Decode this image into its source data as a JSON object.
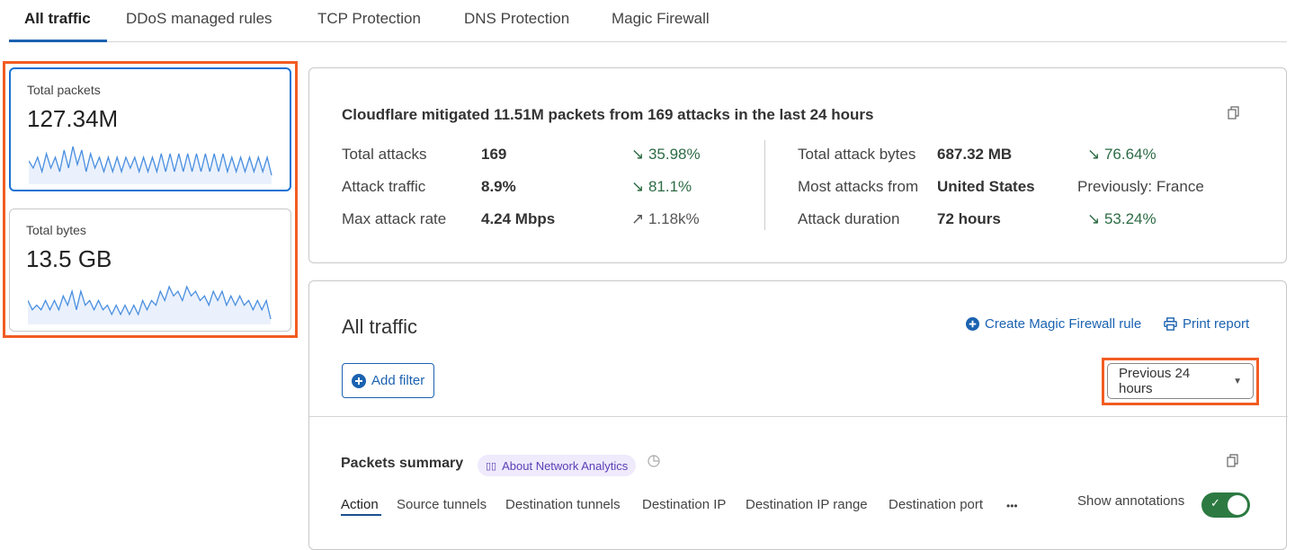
{
  "tabs": [
    {
      "label": "All traffic",
      "active": true
    },
    {
      "label": "DDoS managed rules"
    },
    {
      "label": "TCP Protection"
    },
    {
      "label": "DNS Protection"
    },
    {
      "label": "Magic Firewall"
    }
  ],
  "metrics": [
    {
      "label": "Total packets",
      "value": "127.34M",
      "selected": true,
      "sparkline": [
        5,
        3,
        6,
        2,
        7,
        3,
        6,
        2,
        8,
        3,
        9,
        4,
        8,
        2,
        7,
        3,
        6,
        2,
        6,
        2,
        6,
        2,
        6,
        3,
        6,
        2,
        6,
        2,
        6,
        2,
        7,
        2,
        7,
        2,
        7,
        2,
        7,
        2,
        7,
        2,
        7,
        2,
        7,
        2,
        7,
        2,
        6,
        2,
        6,
        2,
        6,
        2,
        6,
        2,
        6,
        1
      ]
    },
    {
      "label": "Total bytes",
      "value": "13.5 GB",
      "selected": false,
      "sparkline": [
        4,
        2,
        3,
        2,
        4,
        2,
        4,
        2,
        5,
        3,
        6,
        2,
        6,
        3,
        4,
        2,
        4,
        2,
        3,
        1,
        3,
        1,
        3,
        1,
        3,
        1,
        4,
        2,
        4,
        3,
        6,
        4,
        7,
        5,
        6,
        4,
        7,
        5,
        6,
        4,
        5,
        3,
        6,
        4,
        6,
        3,
        5,
        3,
        5,
        3,
        4,
        2,
        4,
        2,
        4,
        0
      ]
    }
  ],
  "summary": {
    "headline": "Cloudflare mitigated 11.51M packets from 169 attacks in the last 24 hours",
    "left": [
      {
        "label": "Total attacks",
        "value": "169",
        "change": "35.98%",
        "direction": "down"
      },
      {
        "label": "Attack traffic",
        "value": "8.9%",
        "change": "81.1%",
        "direction": "down"
      },
      {
        "label": "Max attack rate",
        "value": "4.24 Mbps",
        "change": "1.18k%",
        "direction": "up"
      }
    ],
    "right": [
      {
        "label": "Total attack bytes",
        "value": "687.32 MB",
        "change": "76.64%",
        "direction": "down"
      },
      {
        "label": "Most attacks from",
        "value": "United States",
        "change": "Previously: France",
        "direction": "none"
      },
      {
        "label": "Attack duration",
        "value": "72 hours",
        "change": "53.24%",
        "direction": "down"
      }
    ]
  },
  "traffic": {
    "title": "All traffic",
    "create_rule": "Create Magic Firewall rule",
    "print": "Print report",
    "add_filter": "Add filter",
    "time_range": "Previous 24 hours"
  },
  "packets": {
    "title": "Packets summary",
    "about": "About Network Analytics",
    "subtabs": [
      "Action",
      "Source tunnels",
      "Destination tunnels",
      "Destination IP",
      "Destination IP range",
      "Destination port"
    ],
    "more": "•••",
    "annotations_label": "Show annotations",
    "annotations_on": true
  },
  "colors": {
    "accent": "#1b62b0",
    "highlight": "#f25c23",
    "positive": "#2d6b45",
    "toggle": "#2c7a42"
  }
}
